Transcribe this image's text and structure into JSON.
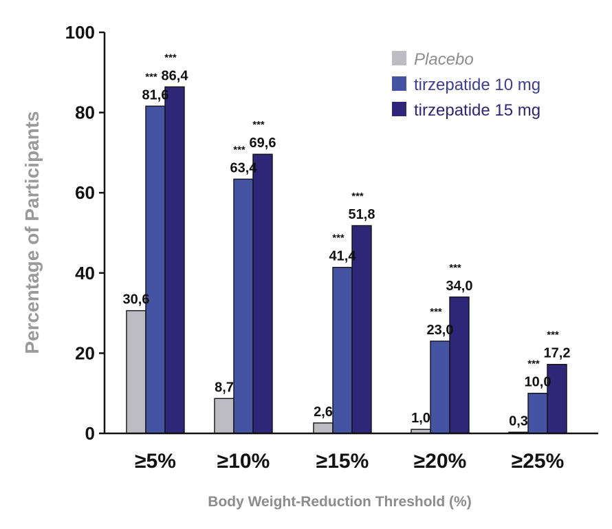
{
  "chart_data": {
    "type": "bar",
    "title": "",
    "xlabel": "Body Weight-Reduction Threshold (%)",
    "ylabel": "Percentage of Participants",
    "ylim": [
      0,
      100
    ],
    "yticks": [
      "0",
      "20",
      "40",
      "60",
      "80",
      "100"
    ],
    "categories": [
      "≥5%",
      "≥10%",
      "≥15%",
      "≥20%",
      "≥25%"
    ],
    "grid": false,
    "legend_position": "top-right",
    "series": [
      {
        "name": "Placebo",
        "color": "#bcbcc2",
        "label_color": "#8c8c8c",
        "italic": true,
        "values": [
          30.6,
          8.7,
          2.6,
          1.0,
          0.3
        ],
        "labels": [
          "30,6",
          "8,7",
          "2,6",
          "1,0",
          "0,3"
        ],
        "significance": [
          "",
          "",
          "",
          "",
          ""
        ]
      },
      {
        "name": "tirzepatide 10 mg",
        "color": "#4553a3",
        "label_color": "#3c3f8f",
        "italic": false,
        "values": [
          81.6,
          63.4,
          41.4,
          23.0,
          10.0
        ],
        "labels": [
          "81,6",
          "63,4",
          "41,4",
          "23,0",
          "10,0"
        ],
        "significance": [
          "***",
          "***",
          "***",
          "***",
          "***"
        ]
      },
      {
        "name": "tirzepatide 15 mg",
        "color": "#2e2677",
        "label_color": "#2e2677",
        "italic": false,
        "values": [
          86.4,
          69.6,
          51.8,
          34.0,
          17.2
        ],
        "labels": [
          "86,4",
          "69,6",
          "51,8",
          "34,0",
          "17,2"
        ],
        "significance": [
          "***",
          "***",
          "***",
          "***",
          "***"
        ]
      }
    ]
  }
}
